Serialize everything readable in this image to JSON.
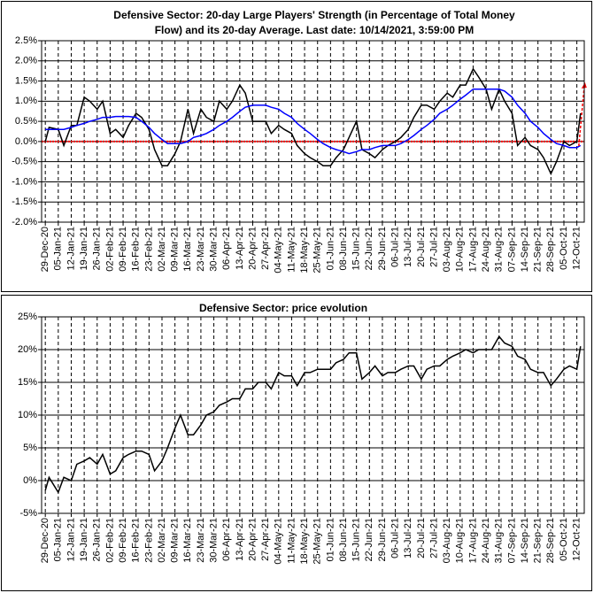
{
  "chart_data": [
    {
      "type": "line",
      "title": [
        "Defensive Sector: 20-day Large Players' Strength (in Percentage of Total Money",
        "Flow) and its 20-day Average. Last date: 10/14/2021, 3:59:00 PM"
      ],
      "x": [
        "2020-12-29",
        "2020-12-31",
        "2021-01-05",
        "2021-01-08",
        "2021-01-12",
        "2021-01-15",
        "2021-01-19",
        "2021-01-22",
        "2021-01-26",
        "2021-01-29",
        "2021-02-02",
        "2021-02-05",
        "2021-02-09",
        "2021-02-12",
        "2021-02-16",
        "2021-02-19",
        "2021-02-23",
        "2021-02-26",
        "2021-03-02",
        "2021-03-05",
        "2021-03-09",
        "2021-03-12",
        "2021-03-16",
        "2021-03-19",
        "2021-03-23",
        "2021-03-26",
        "2021-03-30",
        "2021-04-02",
        "2021-04-06",
        "2021-04-09",
        "2021-04-13",
        "2021-04-16",
        "2021-04-20",
        "2021-04-23",
        "2021-04-27",
        "2021-04-30",
        "2021-05-04",
        "2021-05-07",
        "2021-05-11",
        "2021-05-14",
        "2021-05-18",
        "2021-05-21",
        "2021-05-25",
        "2021-05-28",
        "2021-06-01",
        "2021-06-04",
        "2021-06-08",
        "2021-06-11",
        "2021-06-15",
        "2021-06-18",
        "2021-06-22",
        "2021-06-25",
        "2021-06-29",
        "2021-07-02",
        "2021-07-06",
        "2021-07-09",
        "2021-07-13",
        "2021-07-16",
        "2021-07-20",
        "2021-07-23",
        "2021-07-27",
        "2021-07-30",
        "2021-08-03",
        "2021-08-06",
        "2021-08-10",
        "2021-08-13",
        "2021-08-17",
        "2021-08-20",
        "2021-08-24",
        "2021-08-27",
        "2021-08-31",
        "2021-09-03",
        "2021-09-07",
        "2021-09-10",
        "2021-09-14",
        "2021-09-17",
        "2021-09-21",
        "2021-09-24",
        "2021-09-28",
        "2021-10-01",
        "2021-10-05",
        "2021-10-08",
        "2021-10-12",
        "2021-10-14"
      ],
      "series": [
        {
          "color": "#000000",
          "values": [
            0.0,
            0.35,
            0.3,
            -0.1,
            0.4,
            0.4,
            1.1,
            1.0,
            0.8,
            1.0,
            0.2,
            0.3,
            0.1,
            0.4,
            0.7,
            0.6,
            0.3,
            -0.2,
            -0.6,
            -0.6,
            -0.3,
            0.0,
            0.8,
            0.2,
            0.8,
            0.6,
            0.5,
            1.0,
            0.8,
            1.0,
            1.4,
            1.2,
            0.5,
            0.5,
            0.5,
            0.2,
            0.4,
            0.3,
            0.2,
            -0.1,
            -0.3,
            -0.4,
            -0.5,
            -0.6,
            -0.6,
            -0.4,
            -0.2,
            0.1,
            0.5,
            -0.2,
            -0.3,
            -0.4,
            -0.2,
            -0.1,
            0.0,
            0.1,
            0.3,
            0.6,
            0.9,
            0.9,
            0.8,
            1.0,
            1.2,
            1.1,
            1.4,
            1.4,
            1.8,
            1.6,
            1.3,
            0.8,
            1.3,
            1.0,
            0.7,
            -0.1,
            0.1,
            -0.1,
            -0.2,
            -0.4,
            -0.8,
            -0.5,
            0.0,
            -0.1,
            0.0,
            0.7
          ]
        },
        {
          "color": "#0000ff",
          "values": [
            0.3,
            0.3,
            0.3,
            0.3,
            0.35,
            0.4,
            0.45,
            0.5,
            0.55,
            0.6,
            0.6,
            0.62,
            0.62,
            0.62,
            0.6,
            0.5,
            0.35,
            0.2,
            0.05,
            -0.05,
            -0.05,
            -0.05,
            0.0,
            0.1,
            0.15,
            0.2,
            0.3,
            0.4,
            0.5,
            0.6,
            0.75,
            0.85,
            0.9,
            0.9,
            0.9,
            0.85,
            0.8,
            0.7,
            0.6,
            0.45,
            0.3,
            0.2,
            0.05,
            -0.05,
            -0.15,
            -0.2,
            -0.25,
            -0.3,
            -0.25,
            -0.2,
            -0.2,
            -0.15,
            -0.1,
            -0.1,
            -0.1,
            -0.05,
            0.05,
            0.15,
            0.3,
            0.4,
            0.55,
            0.7,
            0.8,
            0.9,
            1.05,
            1.15,
            1.3,
            1.3,
            1.3,
            1.3,
            1.3,
            1.25,
            1.1,
            0.9,
            0.7,
            0.5,
            0.35,
            0.2,
            0.05,
            -0.05,
            -0.1,
            -0.15,
            -0.15,
            -0.1
          ]
        }
      ],
      "zero_line_color": "#ff0000",
      "xlim": [
        "2020-12-27",
        "2021-10-16"
      ],
      "xticks": [
        {
          "value": "2020-12-29",
          "label": "29-Dec-20"
        },
        {
          "value": "2021-01-05",
          "label": "05-Jan-21"
        },
        {
          "value": "2021-01-12",
          "label": "12-Jan-21"
        },
        {
          "value": "2021-01-19",
          "label": "19-Jan-21"
        },
        {
          "value": "2021-01-26",
          "label": "26-Jan-21"
        },
        {
          "value": "2021-02-02",
          "label": "02-Feb-21"
        },
        {
          "value": "2021-02-09",
          "label": "09-Feb-21"
        },
        {
          "value": "2021-02-16",
          "label": "16-Feb-21"
        },
        {
          "value": "2021-02-23",
          "label": "23-Feb-21"
        },
        {
          "value": "2021-03-02",
          "label": "02-Mar-21"
        },
        {
          "value": "2021-03-09",
          "label": "09-Mar-21"
        },
        {
          "value": "2021-03-16",
          "label": "16-Mar-21"
        },
        {
          "value": "2021-03-23",
          "label": "23-Mar-21"
        },
        {
          "value": "2021-03-30",
          "label": "30-Mar-21"
        },
        {
          "value": "2021-04-06",
          "label": "06-Apr-21"
        },
        {
          "value": "2021-04-13",
          "label": "13-Apr-21"
        },
        {
          "value": "2021-04-20",
          "label": "20-Apr-21"
        },
        {
          "value": "2021-04-27",
          "label": "27-Apr-21"
        },
        {
          "value": "2021-05-04",
          "label": "04-May-21"
        },
        {
          "value": "2021-05-11",
          "label": "11-May-21"
        },
        {
          "value": "2021-05-18",
          "label": "18-May-21"
        },
        {
          "value": "2021-05-25",
          "label": "25-May-21"
        },
        {
          "value": "2021-06-01",
          "label": "01-Jun-21"
        },
        {
          "value": "2021-06-08",
          "label": "08-Jun-21"
        },
        {
          "value": "2021-06-15",
          "label": "15-Jun-21"
        },
        {
          "value": "2021-06-22",
          "label": "22-Jun-21"
        },
        {
          "value": "2021-06-29",
          "label": "29-Jun-21"
        },
        {
          "value": "2021-07-06",
          "label": "06-Jul-21"
        },
        {
          "value": "2021-07-13",
          "label": "13-Jul-21"
        },
        {
          "value": "2021-07-20",
          "label": "20-Jul-21"
        },
        {
          "value": "2021-07-27",
          "label": "27-Jul-21"
        },
        {
          "value": "2021-08-03",
          "label": "03-Aug-21"
        },
        {
          "value": "2021-08-10",
          "label": "10-Aug-21"
        },
        {
          "value": "2021-08-17",
          "label": "17-Aug-21"
        },
        {
          "value": "2021-08-24",
          "label": "24-Aug-21"
        },
        {
          "value": "2021-08-31",
          "label": "31-Aug-21"
        },
        {
          "value": "2021-09-07",
          "label": "07-Sep-21"
        },
        {
          "value": "2021-09-14",
          "label": "14-Sep-21"
        },
        {
          "value": "2021-09-21",
          "label": "21-Sep-21"
        },
        {
          "value": "2021-09-28",
          "label": "28-Sep-21"
        },
        {
          "value": "2021-10-05",
          "label": "05-Oct-21"
        },
        {
          "value": "2021-10-12",
          "label": "12-Oct-21"
        }
      ],
      "ylim": [
        -2.0,
        2.5
      ],
      "yticks": [
        {
          "value": -2.0,
          "label": "-2.0%"
        },
        {
          "value": -1.5,
          "label": "-1.5%"
        },
        {
          "value": -1.0,
          "label": "-1.0%"
        },
        {
          "value": -0.5,
          "label": "-0.5%"
        },
        {
          "value": 0.0,
          "label": "0.0%"
        },
        {
          "value": 0.5,
          "label": "0.5%"
        },
        {
          "value": 1.0,
          "label": "1.0%"
        },
        {
          "value": 1.5,
          "label": "1.5%"
        },
        {
          "value": 2.0,
          "label": "2.0%"
        },
        {
          "value": 2.5,
          "label": "2.5%"
        }
      ],
      "grid": true
    },
    {
      "type": "line",
      "title": [
        "Defensive Sector: price evolution"
      ],
      "x": [
        "2020-12-29",
        "2020-12-31",
        "2021-01-05",
        "2021-01-08",
        "2021-01-12",
        "2021-01-15",
        "2021-01-19",
        "2021-01-22",
        "2021-01-26",
        "2021-01-29",
        "2021-02-02",
        "2021-02-05",
        "2021-02-09",
        "2021-02-12",
        "2021-02-16",
        "2021-02-19",
        "2021-02-23",
        "2021-02-26",
        "2021-03-02",
        "2021-03-05",
        "2021-03-09",
        "2021-03-12",
        "2021-03-16",
        "2021-03-19",
        "2021-03-23",
        "2021-03-26",
        "2021-03-30",
        "2021-04-02",
        "2021-04-06",
        "2021-04-09",
        "2021-04-13",
        "2021-04-16",
        "2021-04-20",
        "2021-04-23",
        "2021-04-27",
        "2021-04-30",
        "2021-05-04",
        "2021-05-07",
        "2021-05-11",
        "2021-05-14",
        "2021-05-18",
        "2021-05-21",
        "2021-05-25",
        "2021-05-28",
        "2021-06-01",
        "2021-06-04",
        "2021-06-08",
        "2021-06-11",
        "2021-06-15",
        "2021-06-18",
        "2021-06-22",
        "2021-06-25",
        "2021-06-29",
        "2021-07-02",
        "2021-07-06",
        "2021-07-09",
        "2021-07-13",
        "2021-07-16",
        "2021-07-20",
        "2021-07-23",
        "2021-07-27",
        "2021-07-30",
        "2021-08-03",
        "2021-08-06",
        "2021-08-10",
        "2021-08-13",
        "2021-08-17",
        "2021-08-20",
        "2021-08-24",
        "2021-08-27",
        "2021-08-31",
        "2021-09-03",
        "2021-09-07",
        "2021-09-10",
        "2021-09-14",
        "2021-09-17",
        "2021-09-21",
        "2021-09-24",
        "2021-09-28",
        "2021-10-01",
        "2021-10-05",
        "2021-10-08",
        "2021-10-12",
        "2021-10-14"
      ],
      "series": [
        {
          "color": "#000000",
          "values": [
            -1.5,
            0.5,
            -1.8,
            0.5,
            0.0,
            2.5,
            3.0,
            3.5,
            2.5,
            4.0,
            1.0,
            1.5,
            3.5,
            4.0,
            4.5,
            4.5,
            4.0,
            1.5,
            3.0,
            5.0,
            8.0,
            10.0,
            7.0,
            7.0,
            8.5,
            10.0,
            10.5,
            11.5,
            12.0,
            12.5,
            12.5,
            14.0,
            14.0,
            15.0,
            15.0,
            14.0,
            16.5,
            16.0,
            16.0,
            14.5,
            16.5,
            16.5,
            17.0,
            17.0,
            17.0,
            18.0,
            18.5,
            19.5,
            19.5,
            15.5,
            16.5,
            17.5,
            16.0,
            16.5,
            16.5,
            17.0,
            17.5,
            17.5,
            15.5,
            17.0,
            17.5,
            17.5,
            18.5,
            19.0,
            19.5,
            20.0,
            19.5,
            20.0,
            20.0,
            20.0,
            22.0,
            21.0,
            20.5,
            19.0,
            18.5,
            17.0,
            16.5,
            16.5,
            14.5,
            15.5,
            17.0,
            17.5,
            17.0,
            20.5
          ]
        }
      ],
      "xlim": [
        "2020-12-27",
        "2021-10-16"
      ],
      "xticks": [
        {
          "value": "2020-12-29",
          "label": "29-Dec-20"
        },
        {
          "value": "2021-01-05",
          "label": "05-Jan-21"
        },
        {
          "value": "2021-01-12",
          "label": "12-Jan-21"
        },
        {
          "value": "2021-01-19",
          "label": "19-Jan-21"
        },
        {
          "value": "2021-01-26",
          "label": "26-Jan-21"
        },
        {
          "value": "2021-02-02",
          "label": "02-Feb-21"
        },
        {
          "value": "2021-02-09",
          "label": "09-Feb-21"
        },
        {
          "value": "2021-02-16",
          "label": "16-Feb-21"
        },
        {
          "value": "2021-02-23",
          "label": "23-Feb-21"
        },
        {
          "value": "2021-03-02",
          "label": "02-Mar-21"
        },
        {
          "value": "2021-03-09",
          "label": "09-Mar-21"
        },
        {
          "value": "2021-03-16",
          "label": "16-Mar-21"
        },
        {
          "value": "2021-03-23",
          "label": "23-Mar-21"
        },
        {
          "value": "2021-03-30",
          "label": "30-Mar-21"
        },
        {
          "value": "2021-04-06",
          "label": "06-Apr-21"
        },
        {
          "value": "2021-04-13",
          "label": "13-Apr-21"
        },
        {
          "value": "2021-04-20",
          "label": "20-Apr-21"
        },
        {
          "value": "2021-04-27",
          "label": "27-Apr-21"
        },
        {
          "value": "2021-05-04",
          "label": "04-May-21"
        },
        {
          "value": "2021-05-11",
          "label": "11-May-21"
        },
        {
          "value": "2021-05-18",
          "label": "18-May-21"
        },
        {
          "value": "2021-05-25",
          "label": "25-May-21"
        },
        {
          "value": "2021-06-01",
          "label": "01-Jun-21"
        },
        {
          "value": "2021-06-08",
          "label": "08-Jun-21"
        },
        {
          "value": "2021-06-15",
          "label": "15-Jun-21"
        },
        {
          "value": "2021-06-22",
          "label": "22-Jun-21"
        },
        {
          "value": "2021-06-29",
          "label": "29-Jun-21"
        },
        {
          "value": "2021-07-06",
          "label": "06-Jul-21"
        },
        {
          "value": "2021-07-13",
          "label": "13-Jul-21"
        },
        {
          "value": "2021-07-20",
          "label": "20-Jul-21"
        },
        {
          "value": "2021-07-27",
          "label": "27-Jul-21"
        },
        {
          "value": "2021-08-03",
          "label": "03-Aug-21"
        },
        {
          "value": "2021-08-10",
          "label": "10-Aug-21"
        },
        {
          "value": "2021-08-17",
          "label": "17-Aug-21"
        },
        {
          "value": "2021-08-24",
          "label": "24-Aug-21"
        },
        {
          "value": "2021-08-31",
          "label": "31-Aug-21"
        },
        {
          "value": "2021-09-07",
          "label": "07-Sep-21"
        },
        {
          "value": "2021-09-14",
          "label": "14-Sep-21"
        },
        {
          "value": "2021-09-21",
          "label": "21-Sep-21"
        },
        {
          "value": "2021-09-28",
          "label": "28-Sep-21"
        },
        {
          "value": "2021-10-05",
          "label": "05-Oct-21"
        },
        {
          "value": "2021-10-12",
          "label": "12-Oct-21"
        }
      ],
      "ylim": [
        -5,
        25
      ],
      "yticks": [
        {
          "value": -5,
          "label": "-5%"
        },
        {
          "value": 0,
          "label": "0%"
        },
        {
          "value": 5,
          "label": "5%"
        },
        {
          "value": 10,
          "label": "10%"
        },
        {
          "value": 15,
          "label": "15%"
        },
        {
          "value": 20,
          "label": "20%"
        },
        {
          "value": 25,
          "label": "25%"
        }
      ],
      "grid": true
    }
  ]
}
